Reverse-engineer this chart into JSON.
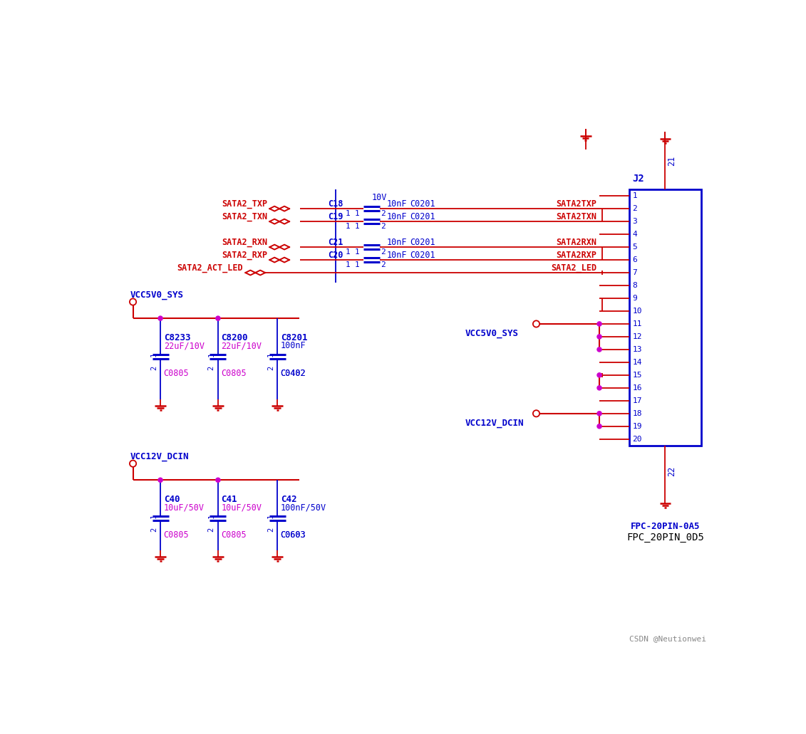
{
  "bg_color": "#FFFFFF",
  "blue": "#0000CC",
  "red": "#CC0000",
  "magenta": "#CC00CC",
  "watermark": "CSDN @Neutionwei",
  "component_label": "J2",
  "component_type_blue": "FPC-20PIN-0A5",
  "component_type_black": "FPC_20PIN_0D5",
  "pin21_label": "21",
  "pin22_label": "22",
  "signal_pins": [
    2,
    3,
    5,
    6,
    7
  ],
  "signal_names_right": [
    "SATA2TXP",
    "SATA2TXN",
    "SATA2RXN",
    "SATA2RXP",
    "SATA2_LED"
  ],
  "signal_names_left": [
    "SATA2_TXP",
    "SATA2_TXN",
    "SATA2_RXN",
    "SATA2_RXP",
    "SATA2_ACT_LED"
  ],
  "cap_names_sata": [
    "C18",
    "C19",
    "C21",
    "C20"
  ],
  "vcc5v0_caps_names": [
    "C8233",
    "C8200",
    "C8201"
  ],
  "vcc5v0_caps_vals": [
    "22uF/10V",
    "22uF/10V",
    "100nF"
  ],
  "vcc5v0_caps_types": [
    "C0805",
    "C0805",
    "C0402"
  ],
  "vcc12v_caps_names": [
    "C40",
    "C41",
    "C42"
  ],
  "vcc12v_caps_vals": [
    "10uF/50V",
    "10uF/50V",
    "100nF/50V"
  ],
  "vcc12v_caps_types": [
    "C0805",
    "C0805",
    "C0603"
  ]
}
